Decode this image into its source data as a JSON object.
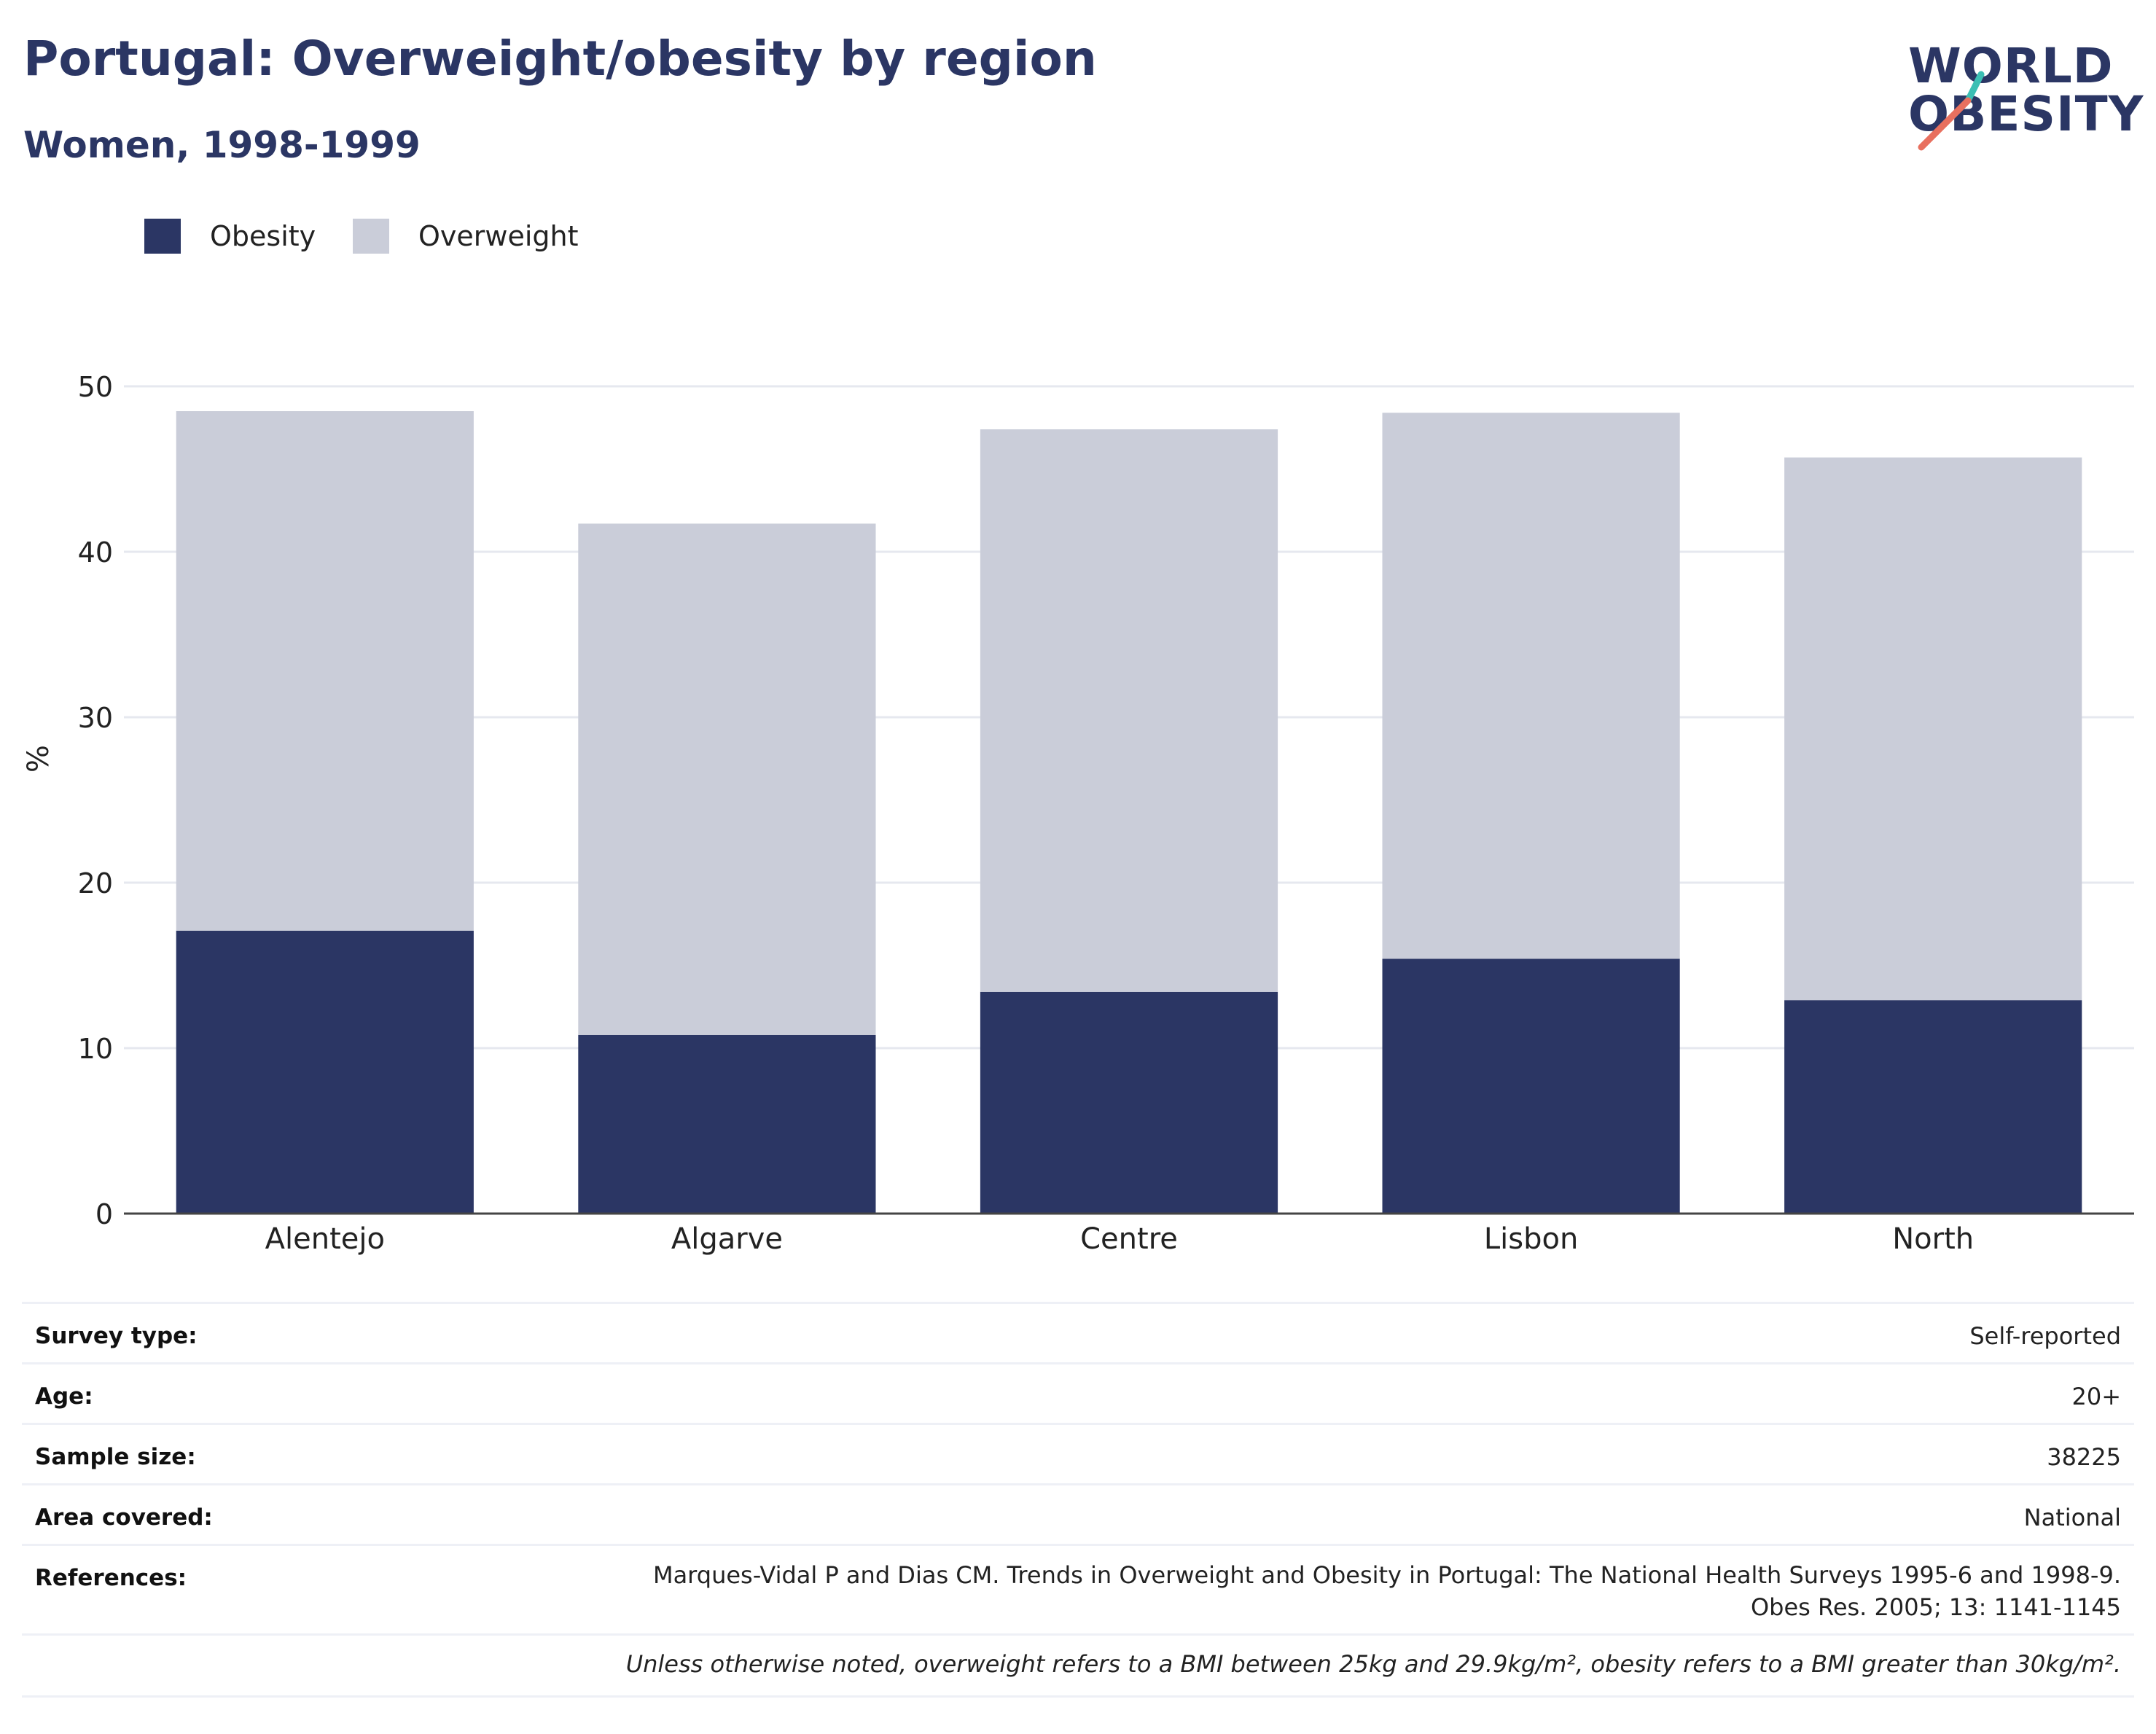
{
  "title": "Portugal: Overweight/obesity by region",
  "subtitle": "Women, 1998-1999",
  "logo": {
    "line1": "WORLD",
    "line2": "OBESITY",
    "slash_colors": [
      "#3cbfb4",
      "#e8705f"
    ]
  },
  "colors": {
    "obesity": "#2b3664",
    "overweight": "#cacdd9",
    "grid": "#e6e8ef",
    "axis": "#444444"
  },
  "legend": [
    {
      "label": "Obesity",
      "color": "#2b3664"
    },
    {
      "label": "Overweight",
      "color": "#cacdd9"
    }
  ],
  "chart_data": {
    "type": "bar",
    "stacked": true,
    "categories": [
      "Alentejo",
      "Algarve",
      "Centre",
      "Lisbon",
      "North"
    ],
    "series": [
      {
        "name": "Obesity",
        "values": [
          17.1,
          10.8,
          13.4,
          15.4,
          12.9
        ]
      },
      {
        "name": "Overweight",
        "values": [
          31.4,
          30.9,
          34.0,
          33.0,
          32.8
        ]
      }
    ],
    "ylabel": "%",
    "ylim": [
      0,
      50
    ],
    "yticks": [
      0,
      10,
      20,
      30,
      40,
      50
    ],
    "grid": true,
    "legend_position": "top-left"
  },
  "meta": [
    {
      "key": "Survey type:",
      "value": "Self-reported"
    },
    {
      "key": "Age:",
      "value": "20+"
    },
    {
      "key": "Sample size:",
      "value": "38225"
    },
    {
      "key": "Area covered:",
      "value": "National"
    },
    {
      "key": "References:",
      "value": "Marques-Vidal P and Dias CM. Trends in Overweight and Obesity in Portugal: The National Health Surveys 1995-6 and 1998-9. Obes Res. 2005; 13: 1141-1145"
    }
  ],
  "footnote": "Unless otherwise noted, overweight refers to a BMI between 25kg and 29.9kg/m², obesity refers to a BMI greater than 30kg/m²."
}
